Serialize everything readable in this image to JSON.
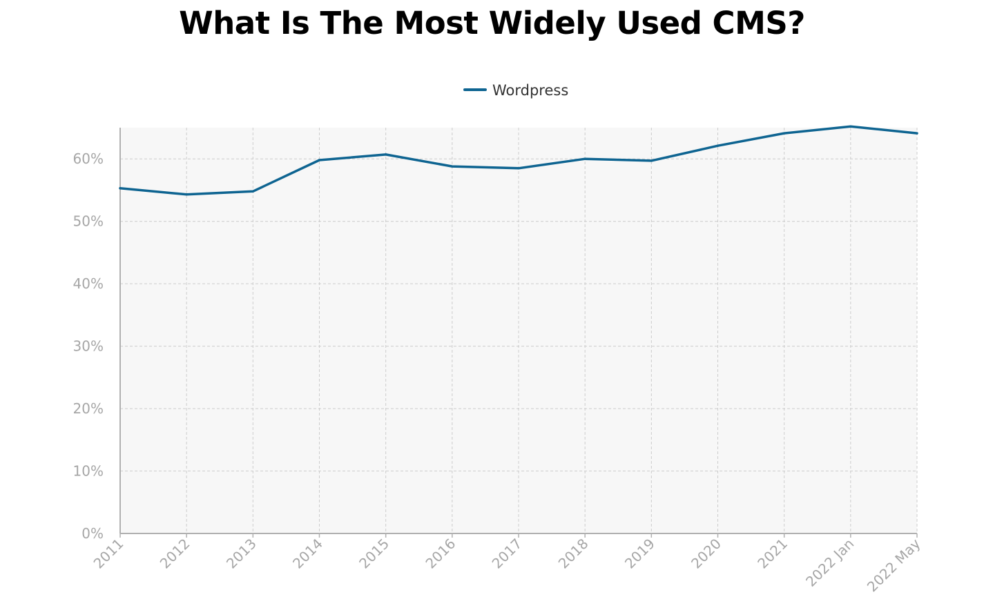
{
  "chart_data": {
    "type": "line",
    "title": "What Is The Most Widely Used CMS?",
    "xlabel": "",
    "ylabel": "",
    "categories": [
      "2011",
      "2012",
      "2013",
      "2014",
      "2015",
      "2016",
      "2017",
      "2018",
      "2019",
      "2020",
      "2021",
      "2022 Jan",
      "2022 May"
    ],
    "series": [
      {
        "name": "Wordpress",
        "color": "#0e6491",
        "values": [
          55.3,
          54.3,
          54.8,
          59.8,
          60.7,
          58.8,
          58.5,
          60.0,
          59.7,
          62.1,
          64.1,
          65.2,
          64.1
        ]
      }
    ],
    "ylim": [
      0,
      65
    ],
    "yticks": [
      0,
      10,
      20,
      30,
      40,
      50,
      60
    ],
    "ytick_labels": [
      "0%",
      "10%",
      "20%",
      "30%",
      "40%",
      "50%",
      "60%"
    ],
    "grid": true,
    "legend_position": "top-center",
    "colors": {
      "plot_background": "#f7f7f7",
      "grid": "#cccccc",
      "axis": "#b0b0b0",
      "tick_text": "#a6a6a6",
      "legend_text": "#333333"
    }
  }
}
